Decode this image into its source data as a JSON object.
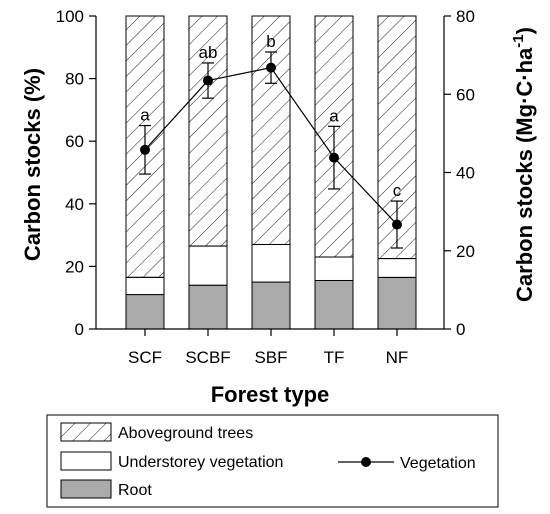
{
  "chart_data": {
    "type": "bar",
    "stacked": true,
    "categories": [
      "SCF",
      "SCBF",
      "SBF",
      "TF",
      "NF"
    ],
    "xlabel": "Forest type",
    "ylabel": "Carbon stocks (%)",
    "y2label": {
      "main": "Carbon stocks (Mg·C·ha",
      "sup": "-1",
      "close": ")"
    },
    "ylim": [
      0,
      100
    ],
    "y2lim": [
      0,
      80
    ],
    "yticks": [
      "0",
      "20",
      "40",
      "60",
      "80",
      "100"
    ],
    "y2ticks": [
      "0",
      "20",
      "40",
      "60",
      "80"
    ],
    "series": [
      {
        "name": "Root",
        "color": "#aaaaaa",
        "pattern": "solid",
        "values": [
          11,
          14,
          15,
          15.5,
          16.5
        ]
      },
      {
        "name": "Understorey vegetation",
        "color": "#ffffff",
        "pattern": "none",
        "values": [
          5.5,
          12.5,
          12,
          7.5,
          6
        ]
      },
      {
        "name": "Aboveground trees",
        "color": "#ffffff",
        "pattern": "hatch",
        "values": [
          83.5,
          73.5,
          73,
          77,
          77.5
        ]
      }
    ],
    "line_series": {
      "name": "Vegetation",
      "axis": "right",
      "values": [
        45.8,
        63.5,
        66.8,
        43.8,
        26.7
      ],
      "errors": [
        6.2,
        4.5,
        4.0,
        8.0,
        6.0
      ],
      "significance": [
        "a",
        "ab",
        "b",
        "a",
        "c"
      ]
    },
    "legend_position": "bottom"
  }
}
